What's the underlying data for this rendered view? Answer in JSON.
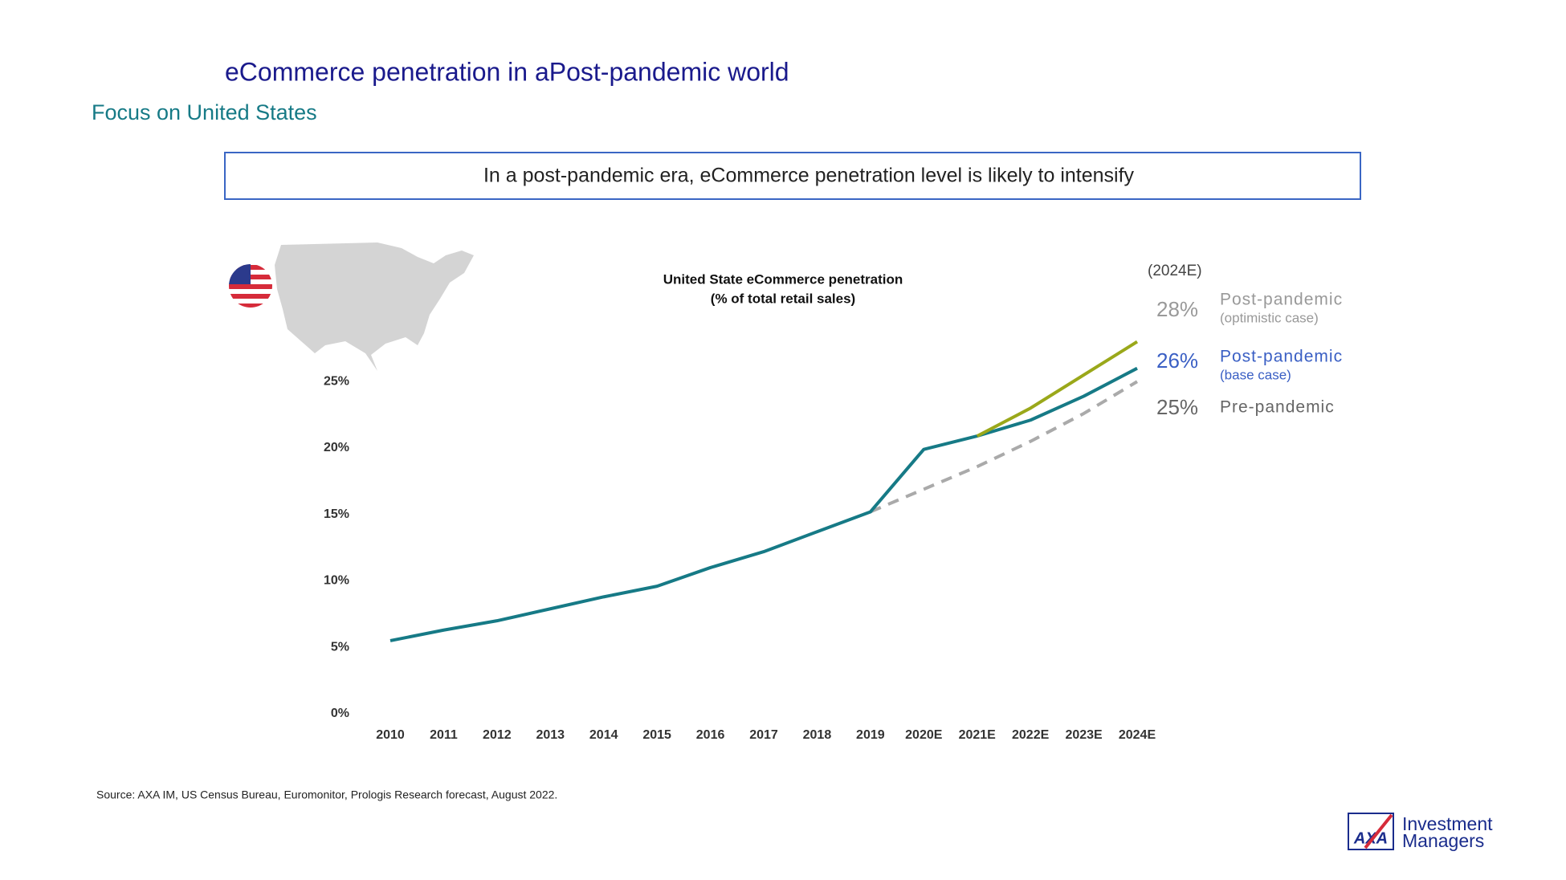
{
  "title": "eCommerce penetration in aPost-pandemic world",
  "subtitle": "Focus on United States",
  "banner": "In a post-pandemic era, eCommerce penetration level is likely to intensify",
  "source": "Source: AXA IM, US Census Bureau, Euromonitor, Prologis Research forecast, August 2022.",
  "logo": {
    "mark": "AXA",
    "line1": "Investment",
    "line2": "Managers"
  },
  "chart_data": {
    "type": "line",
    "title": [
      "United State eCommerce penetration",
      "(% of total retail sales)"
    ],
    "end_header": "(2024E)",
    "categories": [
      "2010",
      "2011",
      "2012",
      "2013",
      "2014",
      "2015",
      "2016",
      "2017",
      "2018",
      "2019",
      "2020E",
      "2021E",
      "2022E",
      "2023E",
      "2024E"
    ],
    "series": [
      {
        "name": "Post-pandemic",
        "note": "(optimistic case)",
        "color": "#9aa81a",
        "dashed": false,
        "values": [
          null,
          null,
          null,
          null,
          null,
          null,
          null,
          null,
          null,
          null,
          null,
          20.9,
          23.0,
          25.5,
          28
        ],
        "value_labels": [
          null,
          null,
          null,
          null,
          null,
          null,
          null,
          null,
          null,
          null,
          null,
          null,
          null,
          null,
          "28%"
        ]
      },
      {
        "name": "Post-pandemic",
        "note": "(base case)",
        "color": "#167a86",
        "dashed": false,
        "values": [
          5.5,
          6.3,
          7.0,
          7.9,
          8.8,
          9.6,
          11.0,
          12.2,
          13.7,
          15.2,
          19.9,
          20.9,
          22.1,
          23.9,
          26
        ],
        "value_labels": [
          null,
          null,
          null,
          null,
          null,
          null,
          null,
          null,
          null,
          null,
          null,
          null,
          null,
          null,
          "26%"
        ]
      },
      {
        "name": "Pre-pandemic",
        "color": "#aaaaaa",
        "dashed": true,
        "values": [
          null,
          null,
          null,
          null,
          null,
          null,
          null,
          null,
          null,
          15.2,
          16.9,
          18.6,
          20.5,
          22.6,
          25
        ],
        "value_labels": [
          null,
          null,
          null,
          null,
          null,
          null,
          null,
          null,
          null,
          null,
          null,
          null,
          null,
          null,
          "25%"
        ]
      }
    ],
    "ylim": [
      0,
      30
    ],
    "yticks": [
      {
        "value": 0,
        "label": "0%"
      },
      {
        "value": 5,
        "label": "5%"
      },
      {
        "value": 10,
        "label": "10%"
      },
      {
        "value": 15,
        "label": "15%"
      },
      {
        "value": 20,
        "label": "20%"
      },
      {
        "value": 25,
        "label": "25%"
      }
    ],
    "grid": false
  }
}
